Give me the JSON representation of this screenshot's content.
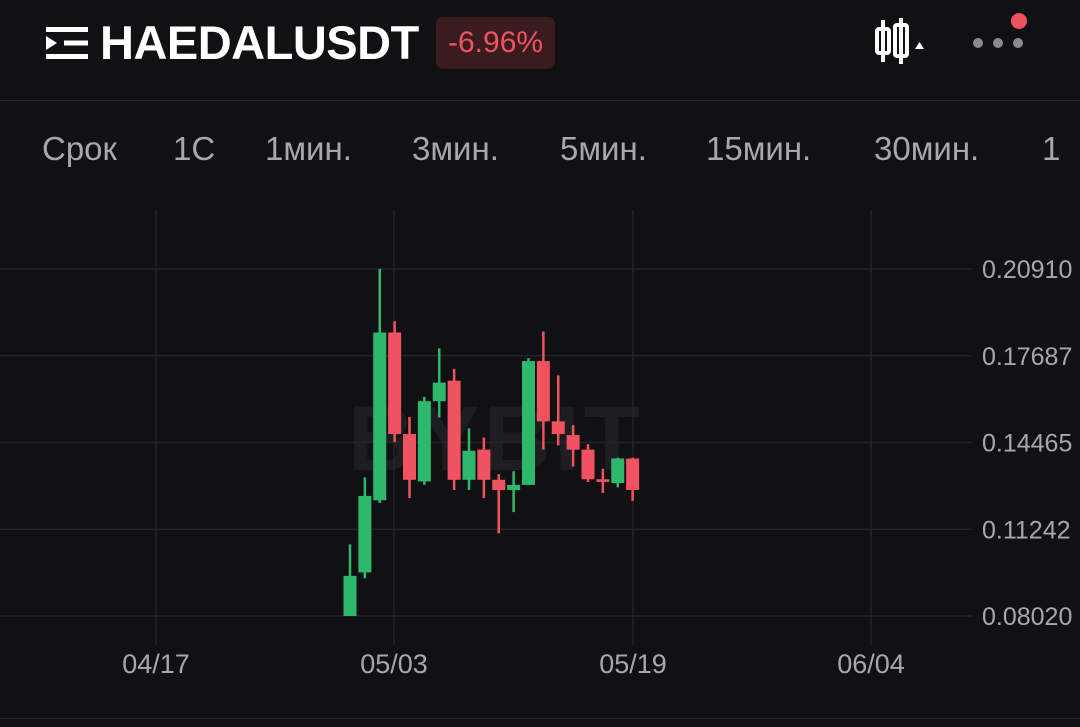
{
  "header": {
    "symbol": "HAEDALUSDT",
    "change": "-6.96%",
    "menu_icon": "menu-icon",
    "chart_type_icon": "candlestick-chart-icon",
    "more_icon": "more-options-icon",
    "notification_color": "#f0525f",
    "negative_color": "#f0525f"
  },
  "tabs": [
    "Срок",
    "1С",
    "1мин.",
    "3мин.",
    "5мин.",
    "15мин.",
    "30мин.",
    "1"
  ],
  "watermark": "BYBIT",
  "chart_data": {
    "type": "candlestick",
    "x_ticks": [
      "04/17",
      "05/03",
      "05/19",
      "06/04"
    ],
    "y_ticks": [
      "0.20910",
      "0.17687",
      "0.14465",
      "0.11242",
      "0.08020"
    ],
    "ylim": [
      0.0802,
      0.2091
    ],
    "up_color": "#2eb86b",
    "down_color": "#f0525f",
    "grid": true,
    "candles": [
      {
        "date": "04/30",
        "open": 0.0802,
        "close": 0.0951,
        "high": 0.1068,
        "low": 0.0802
      },
      {
        "date": "05/01",
        "open": 0.0964,
        "close": 0.1248,
        "high": 0.1317,
        "low": 0.0942
      },
      {
        "date": "05/02",
        "open": 0.1232,
        "close": 0.1855,
        "high": 0.2091,
        "low": 0.1222
      },
      {
        "date": "05/03",
        "open": 0.1855,
        "close": 0.1478,
        "high": 0.1897,
        "low": 0.1448
      },
      {
        "date": "05/04",
        "open": 0.1478,
        "close": 0.1308,
        "high": 0.1541,
        "low": 0.124
      },
      {
        "date": "05/05",
        "open": 0.1302,
        "close": 0.16,
        "high": 0.1616,
        "low": 0.1289
      },
      {
        "date": "05/06",
        "open": 0.16,
        "close": 0.1669,
        "high": 0.1796,
        "low": 0.154
      },
      {
        "date": "05/07",
        "open": 0.1676,
        "close": 0.1308,
        "high": 0.172,
        "low": 0.127
      },
      {
        "date": "05/08",
        "open": 0.1308,
        "close": 0.1416,
        "high": 0.1499,
        "low": 0.127
      },
      {
        "date": "05/09",
        "open": 0.142,
        "close": 0.1308,
        "high": 0.1465,
        "low": 0.124
      },
      {
        "date": "05/10",
        "open": 0.1308,
        "close": 0.127,
        "high": 0.1329,
        "low": 0.1109
      },
      {
        "date": "05/11",
        "open": 0.127,
        "close": 0.1289,
        "high": 0.134,
        "low": 0.1188
      },
      {
        "date": "05/12",
        "open": 0.1289,
        "close": 0.1749,
        "high": 0.176,
        "low": 0.1289
      },
      {
        "date": "05/13",
        "open": 0.1749,
        "close": 0.1525,
        "high": 0.1859,
        "low": 0.142
      },
      {
        "date": "05/14",
        "open": 0.1525,
        "close": 0.1478,
        "high": 0.1696,
        "low": 0.1436
      },
      {
        "date": "05/15",
        "open": 0.1474,
        "close": 0.142,
        "high": 0.1511,
        "low": 0.1357
      },
      {
        "date": "05/16",
        "open": 0.142,
        "close": 0.131,
        "high": 0.144,
        "low": 0.13
      },
      {
        "date": "05/17",
        "open": 0.131,
        "close": 0.13,
        "high": 0.1349,
        "low": 0.1259
      },
      {
        "date": "05/18",
        "open": 0.1296,
        "close": 0.1387,
        "high": 0.139,
        "low": 0.128
      },
      {
        "date": "05/19",
        "open": 0.1387,
        "close": 0.127,
        "high": 0.139,
        "low": 0.1229
      }
    ]
  }
}
